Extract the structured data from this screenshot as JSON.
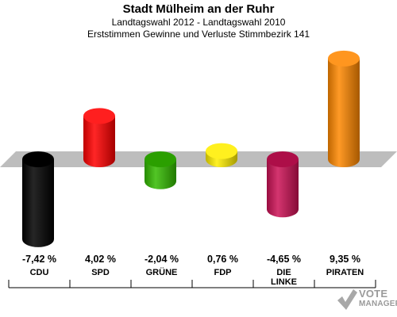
{
  "header": {
    "title": "Stadt Mülheim an der Ruhr",
    "subtitle1": "Landtagswahl 2012 - Landtagswahl 2010",
    "subtitle2": "Erststimmen Gewinne und Verluste Stimmbezirk 141"
  },
  "chart_data": {
    "type": "bar",
    "categories": [
      "CDU",
      "SPD",
      "GRÜNE",
      "FDP",
      "DIE LINKE",
      "PIRATEN"
    ],
    "category_lines": [
      [
        "CDU"
      ],
      [
        "SPD"
      ],
      [
        "GRÜNE"
      ],
      [
        "FDP"
      ],
      [
        "DIE",
        "LINKE"
      ],
      [
        "PIRATEN"
      ]
    ],
    "values": [
      -7.42,
      4.02,
      -2.04,
      0.76,
      -4.65,
      9.35
    ],
    "value_labels": [
      "-7,42 %",
      "4,02 %",
      "-2,04 %",
      "0,76 %",
      "-4,65 %",
      "9,35 %"
    ],
    "colors": [
      "#000000",
      "#ff0000",
      "#33bb00",
      "#ffee00",
      "#cc1155",
      "#ff8800"
    ],
    "title": "Stadt Mülheim an der Ruhr",
    "baseline": 0,
    "grid": false,
    "legend": "none"
  },
  "logo": {
    "line1": "VOTE",
    "line2": "MANAGER"
  }
}
